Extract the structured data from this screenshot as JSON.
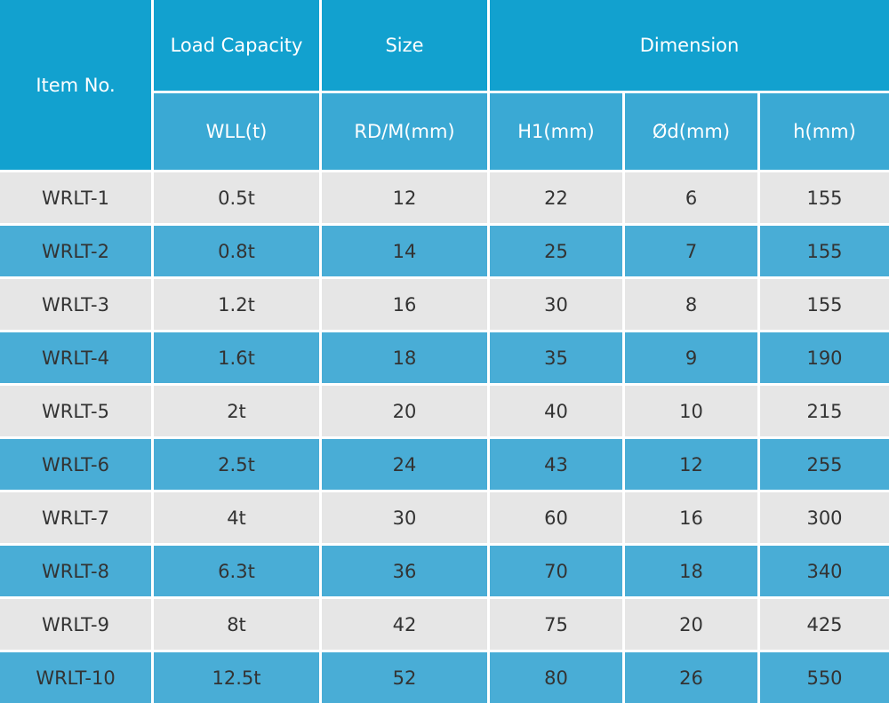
{
  "header": {
    "item_no": "Item No.",
    "load_capacity": "Load Capacity",
    "size": "Size",
    "dimension": "Dimension",
    "wll": "WLL(t)",
    "rdm": "RD/M(mm)",
    "h1": "H1(mm)",
    "od": "Ød(mm)",
    "h": "h(mm)"
  },
  "table": {
    "rows": [
      [
        "WRLT-1",
        "0.5t",
        "12",
        "22",
        "6",
        "155"
      ],
      [
        "WRLT-2",
        "0.8t",
        "14",
        "25",
        "7",
        "155"
      ],
      [
        "WRLT-3",
        "1.2t",
        "16",
        "30",
        "8",
        "155"
      ],
      [
        "WRLT-4",
        "1.6t",
        "18",
        "35",
        "9",
        "190"
      ],
      [
        "WRLT-5",
        "2t",
        "20",
        "40",
        "10",
        "215"
      ],
      [
        "WRLT-6",
        "2.5t",
        "24",
        "43",
        "12",
        "255"
      ],
      [
        "WRLT-7",
        "4t",
        "30",
        "60",
        "16",
        "300"
      ],
      [
        "WRLT-8",
        "6.3t",
        "36",
        "70",
        "18",
        "340"
      ],
      [
        "WRLT-9",
        "8t",
        "42",
        "75",
        "20",
        "425"
      ],
      [
        "WRLT-10",
        "12.5t",
        "52",
        "80",
        "26",
        "550"
      ]
    ]
  }
}
